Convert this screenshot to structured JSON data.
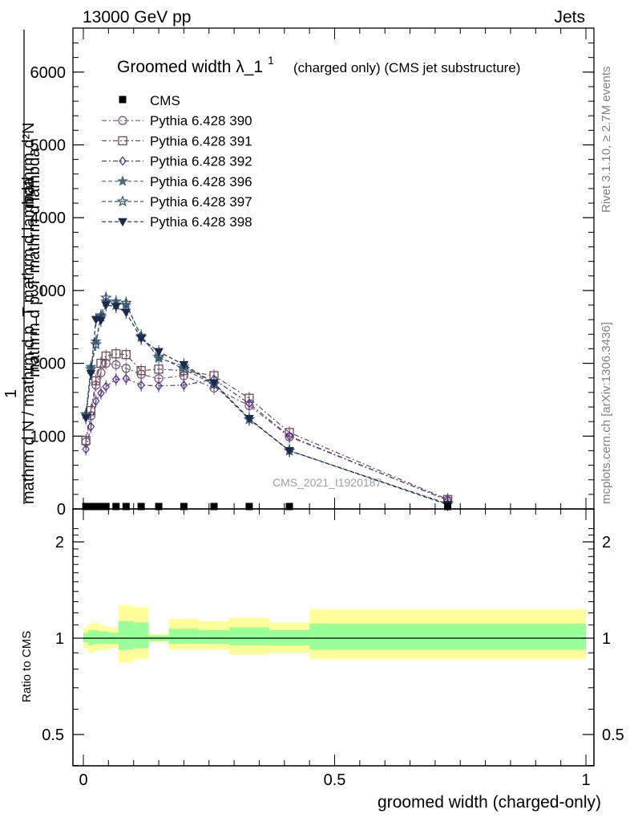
{
  "header": {
    "left": "13000 GeV pp",
    "right": "Jets"
  },
  "side": {
    "rivet": "Rivet 3.1.10, ≥ 2.7M events",
    "mcplots": "mcplots.cern.ch [arXiv:1306.3436]"
  },
  "watermark": "CMS_2021_I1920187",
  "colors": {
    "p390": "#7b5a7d",
    "p391": "#6e4a5a",
    "p392": "#5a3a8a",
    "p396": "#4a6e7e",
    "p397": "#3a5a72",
    "p398": "#1c2a4e",
    "band_outer": "#ffff99",
    "band_inner": "#99ff99"
  },
  "chart_data": [
    {
      "type": "line",
      "title": "Groomed width",
      "title_math": "λ_1",
      "title_sup": "1",
      "title_suffix": "(charged only) (CMS jet substructure)",
      "ylabel_top": "mathrm d²N",
      "ylabel_bottom": "mathrm d N / mathrm d p_T mathrm d lambda",
      "ylabel_sub": "mathrm d p_T mathrm d lambda",
      "ylabel_one": "1",
      "xlim": [
        -0.02,
        1.02
      ],
      "ylim": [
        0,
        6600
      ],
      "yticks": [
        0,
        1000,
        2000,
        3000,
        4000,
        5000,
        6000
      ],
      "grid": false,
      "legend_position": "top-left",
      "cms": {
        "name": "CMS",
        "x": [
          0.005,
          0.015,
          0.025,
          0.035,
          0.045,
          0.065,
          0.085,
          0.115,
          0.15,
          0.2,
          0.26,
          0.33,
          0.41,
          0.725
        ],
        "y": [
          5,
          5,
          5,
          5,
          5,
          5,
          5,
          5,
          5,
          5,
          5,
          5,
          5,
          2
        ]
      },
      "series": [
        {
          "name": "Pythia 6.428 390",
          "marker": "circle-open",
          "x": [
            0.005,
            0.015,
            0.025,
            0.035,
            0.045,
            0.065,
            0.085,
            0.115,
            0.15,
            0.2,
            0.26,
            0.33,
            0.41,
            0.725
          ],
          "y": [
            920,
            1280,
            1700,
            1870,
            2000,
            1980,
            1930,
            1850,
            1790,
            1830,
            1660,
            1420,
            990,
            120
          ]
        },
        {
          "name": "Pythia 6.428 391",
          "marker": "square-open",
          "x": [
            0.005,
            0.015,
            0.025,
            0.035,
            0.045,
            0.065,
            0.085,
            0.115,
            0.15,
            0.2,
            0.26,
            0.33,
            0.41,
            0.725
          ],
          "y": [
            940,
            1350,
            1760,
            2000,
            2100,
            2130,
            2120,
            1900,
            1920,
            1900,
            1830,
            1520,
            1050,
            130
          ]
        },
        {
          "name": "Pythia 6.428 392",
          "marker": "diamond-open",
          "x": [
            0.005,
            0.015,
            0.025,
            0.035,
            0.045,
            0.065,
            0.085,
            0.115,
            0.15,
            0.2,
            0.26,
            0.33,
            0.41,
            0.725
          ],
          "y": [
            820,
            1130,
            1480,
            1590,
            1680,
            1780,
            1790,
            1700,
            1690,
            1700,
            1780,
            1450,
            1000,
            120
          ]
        },
        {
          "name": "Pythia 6.428 396",
          "marker": "star-filled",
          "x": [
            0.005,
            0.015,
            0.025,
            0.035,
            0.045,
            0.065,
            0.085,
            0.115,
            0.15,
            0.2,
            0.26,
            0.33,
            0.41,
            0.725
          ],
          "y": [
            1300,
            1950,
            2300,
            2660,
            2850,
            2850,
            2800,
            2380,
            2070,
            1960,
            1720,
            1230,
            800,
            70
          ]
        },
        {
          "name": "Pythia 6.428 397",
          "marker": "star-open",
          "x": [
            0.005,
            0.015,
            0.025,
            0.035,
            0.045,
            0.065,
            0.085,
            0.115,
            0.15,
            0.2,
            0.26,
            0.33,
            0.41,
            0.725
          ],
          "y": [
            1300,
            1920,
            2260,
            2640,
            2900,
            2800,
            2830,
            2360,
            2090,
            1920,
            1710,
            1230,
            800,
            70
          ]
        },
        {
          "name": "Pythia 6.428 398",
          "marker": "triangle-down-filled",
          "x": [
            0.005,
            0.015,
            0.025,
            0.035,
            0.045,
            0.065,
            0.085,
            0.115,
            0.15,
            0.2,
            0.26,
            0.33,
            0.41,
            0.725
          ],
          "y": [
            1250,
            1860,
            2600,
            2590,
            2800,
            2780,
            2700,
            2340,
            2160,
            1980,
            1730,
            1240,
            800,
            60
          ]
        }
      ]
    },
    {
      "type": "area",
      "ylabel": "Ratio to CMS",
      "xlabel": "groomed width (charged-only)",
      "xlim": [
        -0.02,
        1.02
      ],
      "ylim": [
        0.4,
        2.3
      ],
      "log_y": true,
      "yticks": [
        0.5,
        1,
        2
      ],
      "xticks": [
        0,
        0.5,
        1
      ],
      "bins": [
        {
          "lo": 0.0,
          "hi": 0.01,
          "outer": [
            0.93,
            1.08
          ],
          "inner": [
            0.97,
            1.04
          ]
        },
        {
          "lo": 0.01,
          "hi": 0.02,
          "outer": [
            0.9,
            1.11
          ],
          "inner": [
            0.95,
            1.06
          ]
        },
        {
          "lo": 0.02,
          "hi": 0.03,
          "outer": [
            0.91,
            1.12
          ],
          "inner": [
            0.96,
            1.06
          ]
        },
        {
          "lo": 0.03,
          "hi": 0.04,
          "outer": [
            0.92,
            1.1
          ],
          "inner": [
            0.96,
            1.05
          ]
        },
        {
          "lo": 0.04,
          "hi": 0.05,
          "outer": [
            0.92,
            1.09
          ],
          "inner": [
            0.96,
            1.05
          ]
        },
        {
          "lo": 0.05,
          "hi": 0.07,
          "outer": [
            0.93,
            1.08
          ],
          "inner": [
            0.96,
            1.04
          ]
        },
        {
          "lo": 0.07,
          "hi": 0.1,
          "outer": [
            0.84,
            1.27
          ],
          "inner": [
            0.92,
            1.13
          ]
        },
        {
          "lo": 0.1,
          "hi": 0.13,
          "outer": [
            0.86,
            1.25
          ],
          "inner": [
            0.93,
            1.12
          ]
        },
        {
          "lo": 0.13,
          "hi": 0.17,
          "outer": [
            0.97,
            1.03
          ],
          "inner": [
            0.98,
            1.02
          ]
        },
        {
          "lo": 0.17,
          "hi": 0.23,
          "outer": [
            0.92,
            1.15
          ],
          "inner": [
            0.96,
            1.07
          ]
        },
        {
          "lo": 0.23,
          "hi": 0.29,
          "outer": [
            0.92,
            1.13
          ],
          "inner": [
            0.96,
            1.06
          ]
        },
        {
          "lo": 0.29,
          "hi": 0.37,
          "outer": [
            0.89,
            1.16
          ],
          "inner": [
            0.95,
            1.08
          ]
        },
        {
          "lo": 0.37,
          "hi": 0.45,
          "outer": [
            0.9,
            1.12
          ],
          "inner": [
            0.95,
            1.06
          ]
        },
        {
          "lo": 0.45,
          "hi": 1.0,
          "outer": [
            0.86,
            1.23
          ],
          "inner": [
            0.92,
            1.11
          ]
        }
      ],
      "reference": 1
    }
  ]
}
